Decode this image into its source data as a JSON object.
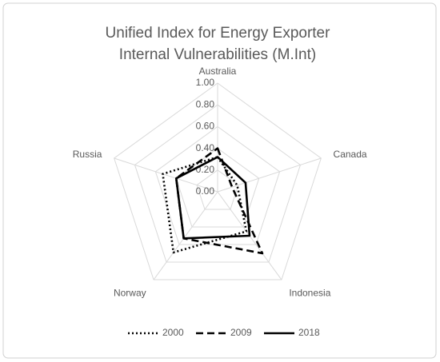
{
  "chart_data": {
    "type": "radar",
    "title": [
      "Unified Index for Energy Exporter",
      "Internal Vulnerabilities (M.Int)"
    ],
    "categories": [
      "Australia",
      "Canada",
      "Indonesia",
      "Norway",
      "Russia"
    ],
    "series": [
      {
        "name": "2000",
        "color": "#000000",
        "line_style": "dotted",
        "values": [
          0.32,
          0.19,
          0.45,
          0.69,
          0.53
        ]
      },
      {
        "name": "2009",
        "color": "#000000",
        "line_style": "dashed",
        "values": [
          0.4,
          0.14,
          0.7,
          0.53,
          0.4
        ]
      },
      {
        "name": "2018",
        "color": "#000000",
        "line_style": "solid",
        "values": [
          0.32,
          0.27,
          0.5,
          0.53,
          0.4
        ]
      }
    ],
    "ylim": [
      0,
      1
    ],
    "yticks": [
      {
        "value": 0,
        "label": "0.00"
      },
      {
        "value": 0.2,
        "label": "0.20"
      },
      {
        "value": 0.4,
        "label": "0.40"
      },
      {
        "value": 0.6,
        "label": "0.60"
      },
      {
        "value": 0.8,
        "label": "0.80"
      },
      {
        "value": 1,
        "label": "1.00"
      }
    ],
    "grid": true,
    "legend": "bottom"
  }
}
